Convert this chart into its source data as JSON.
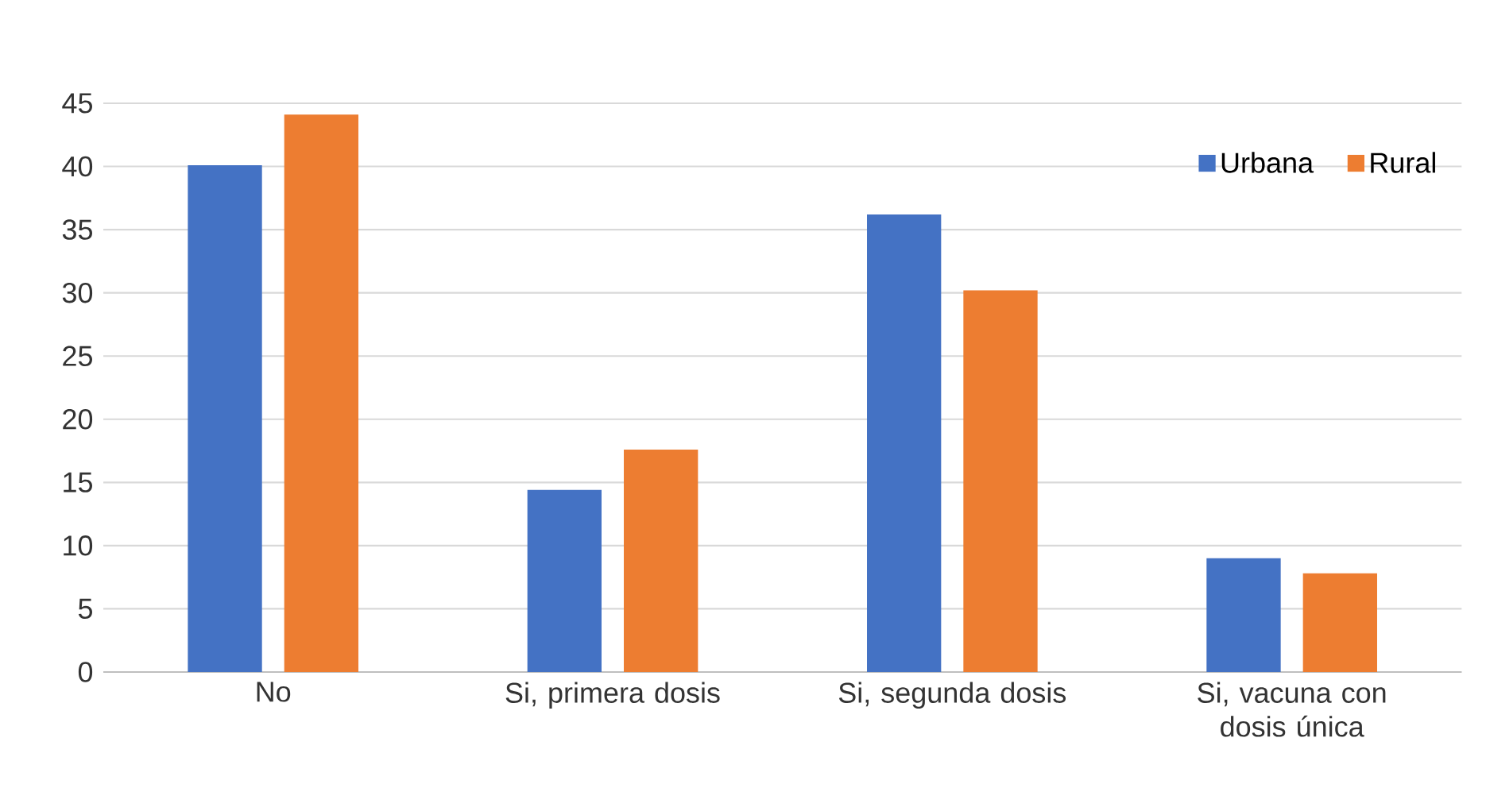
{
  "chart_data": {
    "type": "bar",
    "categories": [
      "No",
      "Si, primera dosis",
      "Si, segunda dosis",
      "Si, vacuna con dosis única"
    ],
    "series": [
      {
        "name": "Urbana",
        "color": "#4472c4",
        "values": [
          40.1,
          14.4,
          36.2,
          9.0
        ]
      },
      {
        "name": "Rural",
        "color": "#ed7d31",
        "values": [
          44.1,
          17.6,
          30.2,
          7.8
        ]
      }
    ],
    "ylim": [
      0,
      45
    ],
    "yticks": [
      0,
      5,
      10,
      15,
      20,
      25,
      30,
      35,
      40,
      45
    ],
    "grid": "y",
    "legend": "top right"
  }
}
